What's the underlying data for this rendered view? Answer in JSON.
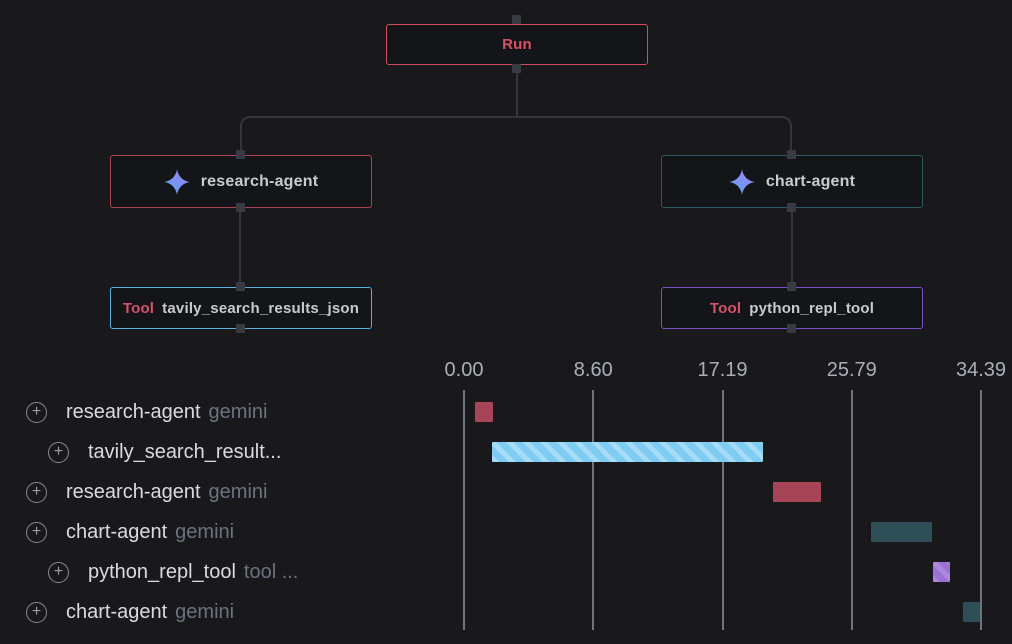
{
  "tree": {
    "root": {
      "label": "Run",
      "border_color": "#cf4d5f",
      "text_color": "#da5065"
    },
    "agents": [
      {
        "label": "research-agent",
        "border_color": "#ad4254",
        "icon": "sparkle-icon"
      },
      {
        "label": "chart-agent",
        "border_color": "#2c5a60",
        "icon": "sparkle-icon"
      }
    ],
    "tools": [
      {
        "prefix": "Tool",
        "label": "tavily_search_results_json",
        "border_color": "#59aede"
      },
      {
        "prefix": "Tool",
        "label": "python_repl_tool",
        "border_color": "#7c50cc"
      }
    ]
  },
  "timeline": {
    "axis_ticks": [
      "0.00",
      "8.60",
      "17.19",
      "25.79",
      "34.39"
    ],
    "rows": [
      {
        "label": "research-agent",
        "sublabel": "gemini",
        "duration": "1.18s",
        "indent": 0,
        "bar": {
          "start": 0.73,
          "duration": 1.18,
          "color": "#a84457",
          "striped": false
        }
      },
      {
        "label": "tavily_search_result...",
        "sublabel": "",
        "duration": "18.03s",
        "indent": 1,
        "bar": {
          "start": 1.87,
          "duration": 18.03,
          "color": "#7fccf2",
          "stripe_color": "#a6dcf7",
          "striped": true
        }
      },
      {
        "label": "research-agent",
        "sublabel": "gemini",
        "duration": "3.19s",
        "indent": 0,
        "bar": {
          "start": 20.55,
          "duration": 3.19,
          "color": "#a84457",
          "striped": false
        }
      },
      {
        "label": "chart-agent",
        "sublabel": "gemini",
        "duration": "4.05s",
        "indent": 0,
        "bar": {
          "start": 27.08,
          "duration": 4.05,
          "color": "#2d4f55",
          "striped": false
        }
      },
      {
        "label": "python_repl_tool",
        "sublabel": "tool ...",
        "duration": "1.11s",
        "indent": 1,
        "bar": {
          "start": 31.2,
          "duration": 1.11,
          "color": "#9a72d4",
          "stripe_color": "#ac87dd",
          "striped": true
        }
      },
      {
        "label": "chart-agent",
        "sublabel": "gemini",
        "duration": "1.16s",
        "indent": 0,
        "bar": {
          "start": 33.2,
          "duration": 1.16,
          "color": "#2d4f55",
          "striped": false
        }
      }
    ]
  },
  "chart_data": {
    "type": "gantt",
    "unit": "seconds",
    "xlim": [
      0,
      34.39
    ],
    "axis_ticks": [
      0.0,
      8.6,
      17.19,
      25.79,
      34.39
    ],
    "grid": true,
    "bars": [
      {
        "label": "research-agent (gemini)",
        "start": 0.73,
        "duration": 1.18,
        "color": "#a84457"
      },
      {
        "label": "tavily_search_results_json",
        "start": 1.87,
        "duration": 18.03,
        "color": "#7fccf2"
      },
      {
        "label": "research-agent (gemini)",
        "start": 20.55,
        "duration": 3.19,
        "color": "#a84457"
      },
      {
        "label": "chart-agent (gemini)",
        "start": 27.08,
        "duration": 4.05,
        "color": "#2d4f55"
      },
      {
        "label": "python_repl_tool (tool)",
        "start": 31.2,
        "duration": 1.11,
        "color": "#9a72d4"
      },
      {
        "label": "chart-agent (gemini)",
        "start": 33.2,
        "duration": 1.16,
        "color": "#2d4f55"
      }
    ]
  },
  "colors": {
    "background": "#19191b",
    "edge": "#33363b",
    "gridline": "#6f747d",
    "axis_text": "#a9afba",
    "row_text": "#d9dbe0",
    "row_subtext": "#6b7280",
    "duration_text": "#e49aa6"
  }
}
